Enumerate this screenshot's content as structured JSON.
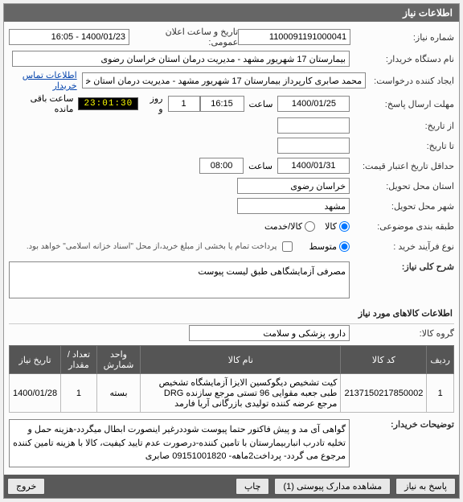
{
  "header": {
    "title": "اطلاعات نیاز"
  },
  "fields": {
    "need_no_lbl": "شماره نیاز:",
    "need_no": "1100091191000041",
    "announce_lbl": "تاریخ و ساعت اعلان عمومی:",
    "announce_val": "1400/01/23 - 16:05",
    "buyer_org_lbl": "نام دستگاه خریدار:",
    "buyer_org": "بیمارستان 17 شهریور مشهد - مدیریت درمان استان خراسان رضوی",
    "requester_lbl": "ایجاد کننده درخواست:",
    "requester": "محمد صابری کارپرداز بیمارستان 17 شهریور مشهد - مدیریت درمان استان خراب",
    "contact_link": "اطلاعات تماس خریدار",
    "deadline_lbl": "مهلت ارسال پاسخ:",
    "deadline_date": "1400/01/25",
    "time_lbl": "ساعت",
    "deadline_time": "16:15",
    "days_lbl": "روز و",
    "days": "1",
    "clock": "23:01:30",
    "remaining_lbl": "ساعت باقی مانده",
    "from_lbl": "از تاریخ:",
    "to_lbl": "تا تاریخ:",
    "validity_lbl": "حداقل تاریخ اعتبار قیمت:",
    "validity_date": "1400/01/31",
    "validity_time": "08:00",
    "deliver_prov_lbl": "استان محل تحویل:",
    "deliver_prov": "خراسان رضوی",
    "deliver_city_lbl": "شهر محل تحویل:",
    "deliver_city": "مشهد",
    "budget_lbl": "طبقه بندی موضوعی:",
    "kala": "کالا",
    "khadamat": "کالا/خدمت",
    "buy_type_lbl": "نوع فرآیند خرید :",
    "medium": "متوسط",
    "pay_note": "پرداخت تمام یا بخشی از مبلغ خرید،از محل \"اسناد خزانه اسلامی\" خواهد بود.",
    "desc_lbl": "شرح کلی نیاز:",
    "desc": "مصرفی آزمایشگاهی طبق لیست پیوست",
    "items_title": "اطلاعات کالاهای مورد نیاز",
    "group_lbl": "گروه کالا:",
    "group": "دارو، پزشکی و سلامت",
    "buyer_notes_lbl": "توضیحات خریدار:",
    "buyer_notes": "گواهی آی مد و پیش فاکتور حتما پیوست شوددرغیر اینصورت ابطال میگردد-هزینه حمل و تخلیه تادرب انباربیمارستان با تامین کننده-درصورت عدم تایید کیفیت، کالا با هزینه تامین کننده مرجوع می گردد- پرداخت2ماهه- 09151001820 صابری"
  },
  "table": {
    "cols": [
      "ردیف",
      "کد کالا",
      "نام کالا",
      "واحد شمارش",
      "تعداد / مقدار",
      "تاریخ نیاز"
    ],
    "rows": [
      [
        "1",
        "2137150217850002",
        "کیت تشخیص دیگوکسین الایزا آزمایشگاه تشخیص طبی جعبه مقوایی 96 تستی مرجع سازنده DRG مرجع عرضه کننده تولیدی بازرگانی آریا فارمد",
        "بسته",
        "1",
        "1400/01/28"
      ]
    ]
  },
  "buttons": {
    "reply": "پاسخ به نیاز",
    "attach": "مشاهده مدارک پیوستی (1)",
    "print": "چاپ",
    "exit": "خروج"
  }
}
